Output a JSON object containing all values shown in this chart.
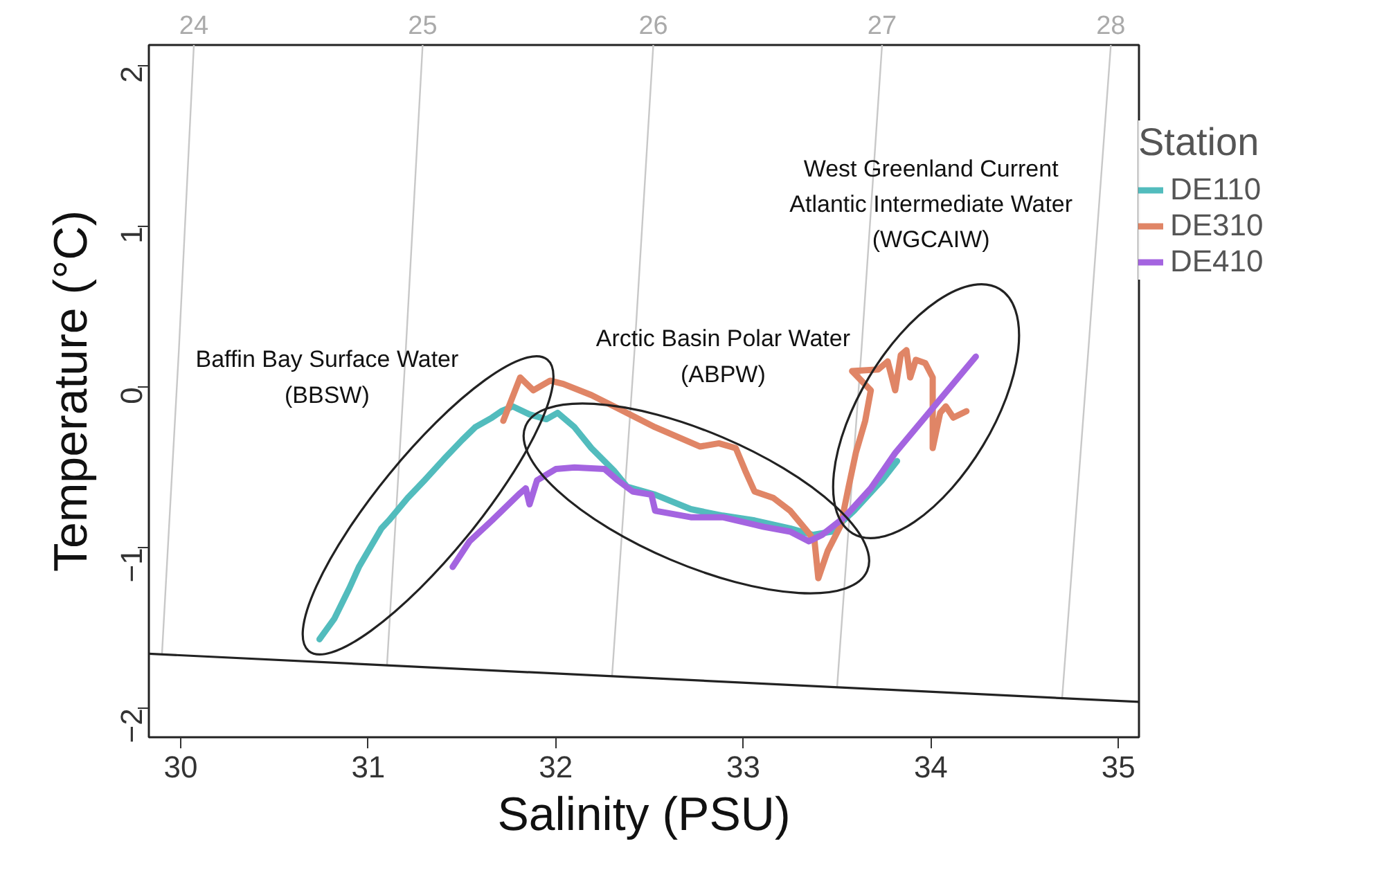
{
  "chart_data": {
    "type": "line",
    "xlabel": "Salinity (PSU)",
    "ylabel": "Temperature (°C)",
    "legend_title": "Station",
    "legend": "right",
    "grid": false,
    "xlim": [
      29.83,
      35.11
    ],
    "ylim": [
      -2.18,
      2.13
    ],
    "xticks": [
      30,
      31,
      32,
      33,
      34,
      35
    ],
    "yticks": [
      -2,
      -1,
      0,
      1,
      2
    ],
    "annotations": [
      "Baffin Bay Surface Water\n(BBSW)",
      "Arctic Basin Polar Water\n(ABPW)",
      "West Greenland Current\nAtlantic Intermediate Water\n(WGCAIW)",
      {
        "text": "24",
        "x": 30.07,
        "y": 2.13
      },
      {
        "text": "25",
        "x": 31.29,
        "y": 2.13
      },
      {
        "text": "26",
        "x": 32.52,
        "y": 2.13
      },
      {
        "text": "27",
        "x": 33.74,
        "y": 2.13
      },
      {
        "text": "28",
        "x": 34.96,
        "y": 2.13
      }
    ],
    "series": [
      {
        "color": "#c8c8c8",
        "x": [
          30.07,
          29.99,
          29.9
        ],
        "values": [
          2.13,
          0.23,
          -1.66
        ]
      },
      {
        "color": "#c8c8c8",
        "x": [
          31.29,
          31.2,
          31.1
        ],
        "values": [
          2.13,
          0.23,
          -1.73
        ]
      },
      {
        "color": "#c8c8c8",
        "x": [
          32.52,
          32.42,
          32.3
        ],
        "values": [
          2.13,
          0.23,
          -1.8
        ]
      },
      {
        "color": "#c8c8c8",
        "x": [
          33.74,
          33.63,
          33.5
        ],
        "values": [
          2.13,
          0.23,
          -1.87
        ]
      },
      {
        "color": "#c8c8c8",
        "x": [
          34.96,
          34.84,
          34.7
        ],
        "values": [
          2.13,
          0.23,
          -1.94
        ]
      },
      {
        "color": "#222222",
        "x": [
          29.83,
          35.11
        ],
        "values": [
          -1.66,
          -1.96
        ]
      },
      {
        "name": "DE110",
        "color": "#52bcbd",
        "x": [
          30.74,
          30.82,
          30.9,
          30.95,
          31.07,
          31.11,
          31.21,
          31.3,
          31.41,
          31.5,
          31.57,
          31.66,
          31.71,
          31.77,
          31.86,
          31.95,
          32.01,
          32.1,
          32.19,
          32.31,
          32.38,
          32.53,
          32.72,
          32.89,
          33.06,
          33.25,
          33.37,
          33.47,
          33.59,
          33.74,
          33.82
        ],
        "values": [
          -1.57,
          -1.44,
          -1.25,
          -1.12,
          -0.88,
          -0.83,
          -0.69,
          -0.58,
          -0.44,
          -0.33,
          -0.25,
          -0.19,
          -0.15,
          -0.12,
          -0.17,
          -0.2,
          -0.16,
          -0.25,
          -0.38,
          -0.52,
          -0.62,
          -0.67,
          -0.76,
          -0.8,
          -0.83,
          -0.88,
          -0.92,
          -0.9,
          -0.77,
          -0.58,
          -0.46
        ]
      },
      {
        "name": "DE310",
        "color": "#e08566",
        "x": [
          31.72,
          31.76,
          31.81,
          31.88,
          31.97,
          32.04,
          32.19,
          32.31,
          32.53,
          32.77,
          32.87,
          32.96,
          33.01,
          33.06,
          33.16,
          33.25,
          33.35,
          33.38,
          33.4,
          33.45,
          33.52,
          33.56,
          33.6,
          33.65,
          33.68,
          33.58,
          33.72,
          33.77,
          33.81,
          33.84,
          33.87,
          33.89,
          33.92,
          33.97,
          34.01,
          34.01,
          34.01,
          34.05,
          34.08,
          34.12,
          34.19
        ],
        "values": [
          -0.21,
          -0.09,
          0.06,
          -0.02,
          0.04,
          0.02,
          -0.05,
          -0.12,
          -0.25,
          -0.37,
          -0.35,
          -0.38,
          -0.52,
          -0.65,
          -0.69,
          -0.77,
          -0.91,
          -0.96,
          -1.19,
          -1.02,
          -0.86,
          -0.63,
          -0.41,
          -0.21,
          -0.02,
          0.1,
          0.11,
          0.16,
          -0.02,
          0.2,
          0.23,
          0.06,
          0.17,
          0.15,
          0.06,
          -0.21,
          -0.38,
          -0.16,
          -0.12,
          -0.19,
          -0.15
        ]
      },
      {
        "name": "DE410",
        "color": "#a464e0",
        "x": [
          31.45,
          31.54,
          31.66,
          31.81,
          31.84,
          31.86,
          31.9,
          32.0,
          32.1,
          32.26,
          32.33,
          32.41,
          32.51,
          32.53,
          32.72,
          32.89,
          33.11,
          33.25,
          33.35,
          33.42,
          33.54,
          33.68,
          33.81,
          34.24
        ],
        "values": [
          -1.12,
          -0.96,
          -0.83,
          -0.66,
          -0.63,
          -0.73,
          -0.58,
          -0.51,
          -0.5,
          -0.51,
          -0.58,
          -0.65,
          -0.67,
          -0.77,
          -0.81,
          -0.81,
          -0.87,
          -0.9,
          -0.96,
          -0.92,
          -0.81,
          -0.63,
          -0.41,
          0.19
        ]
      }
    ]
  }
}
